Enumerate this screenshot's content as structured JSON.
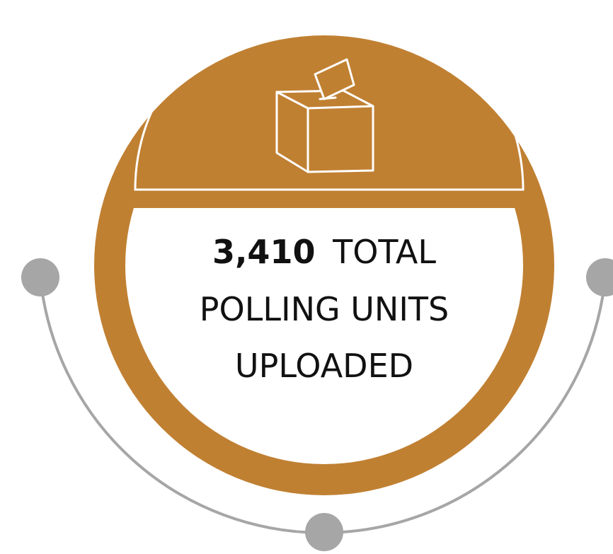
{
  "stat": {
    "number": "3,410",
    "line1": "TOTAL",
    "line2": "POLLING UNITS",
    "line3": "UPLOADED"
  }
}
